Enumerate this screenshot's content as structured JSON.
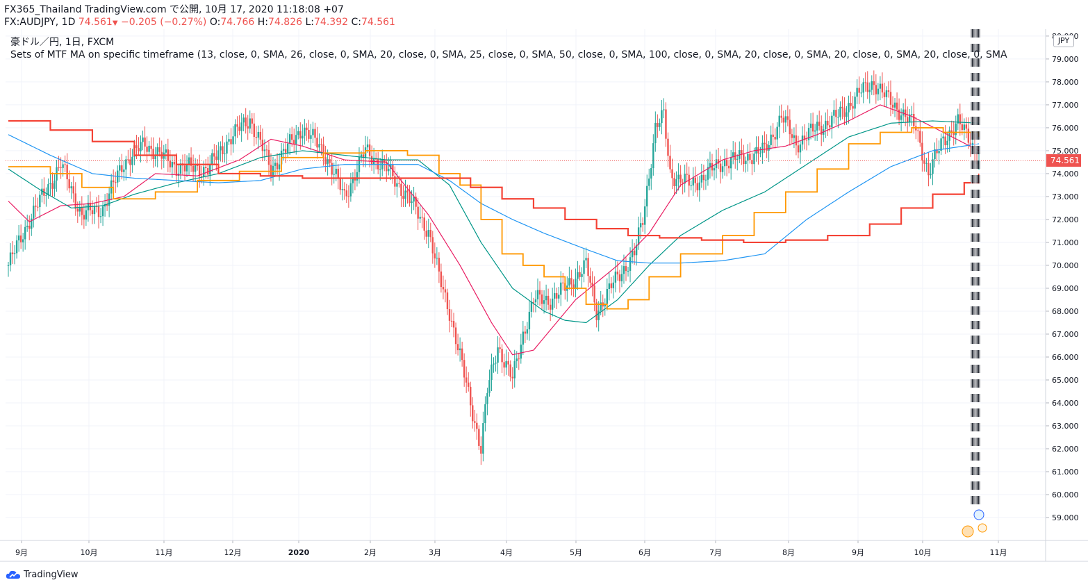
{
  "header": {
    "line1": "FX365_Thailand TradingView.com で公開, 10月 17, 2020 11:18:08 +07",
    "symbol": "FX:AUDJPY, 1D",
    "last": "74.561",
    "arrow": "▼",
    "change": "−0.205 (−0.27%)",
    "o_label": "O:",
    "o": "74.766",
    "h_label": "H:",
    "h": "74.826",
    "l_label": "L:",
    "l": "74.392",
    "c_label": "C:",
    "c": "74.561"
  },
  "legend": {
    "title": "豪ドル／円, 1日, FXCM",
    "indicator": "Sets of MTF MA on specific timeframe (13, close, 0, SMA, 26, close, 0, SMA, 20, close, 0, SMA, 25, close, 0, SMA, 50, close, 0, SMA, 100, close, 0, SMA, 20, close, 0, SMA, 20, close, 0, SMA, 20, close, 0, SMA"
  },
  "axis": {
    "currency": "JPY",
    "last_price": "74.561"
  },
  "brand": {
    "name": "TradingView"
  },
  "colors": {
    "up": "#26a69a",
    "down": "#ef5350",
    "ma13": "#e91e63",
    "ma26": "#009688",
    "ma100": "#2196f3",
    "orange": "#ff9800",
    "red": "#f44336"
  },
  "chart_data": {
    "type": "candlestick",
    "ylim": [
      58.0,
      80.3
    ],
    "y_ticks": [
      "59.000",
      "60.000",
      "61.000",
      "62.000",
      "63.000",
      "64.000",
      "65.000",
      "66.000",
      "67.000",
      "68.000",
      "69.000",
      "70.000",
      "71.000",
      "72.000",
      "73.000",
      "74.000",
      "75.000",
      "76.000",
      "77.000",
      "78.000",
      "79.000",
      "80.000"
    ],
    "x_ticks": [
      "9月",
      "10月",
      "11月",
      "12月",
      "2020",
      "2月",
      "3月",
      "4月",
      "5月",
      "6月",
      "7月",
      "8月",
      "9月",
      "10月",
      "11月"
    ],
    "last_price": 74.561,
    "series": [
      {
        "name": "Price",
        "keypoints": [
          [
            0,
            70.0
          ],
          [
            10,
            72.0
          ],
          [
            25,
            74.4
          ],
          [
            35,
            72.2
          ],
          [
            45,
            72.5
          ],
          [
            55,
            74.5
          ],
          [
            65,
            75.3
          ],
          [
            80,
            74.3
          ],
          [
            95,
            74.2
          ],
          [
            105,
            75.5
          ],
          [
            115,
            76.4
          ],
          [
            125,
            74.2
          ],
          [
            140,
            76.0
          ],
          [
            150,
            75.0
          ],
          [
            160,
            73.0
          ],
          [
            170,
            75.0
          ],
          [
            180,
            74.2
          ],
          [
            190,
            73.0
          ],
          [
            200,
            71.5
          ],
          [
            205,
            69.5
          ],
          [
            210,
            68.0
          ],
          [
            215,
            66.0
          ],
          [
            220,
            64.0
          ],
          [
            225,
            62.0
          ],
          [
            228,
            64.5
          ],
          [
            233,
            66.5
          ],
          [
            240,
            65.0
          ],
          [
            245,
            67.0
          ],
          [
            250,
            68.5
          ],
          [
            258,
            68.5
          ],
          [
            265,
            69.0
          ],
          [
            275,
            70.0
          ],
          [
            280,
            68.0
          ],
          [
            290,
            69.5
          ],
          [
            298,
            70.5
          ],
          [
            302,
            72.0
          ],
          [
            308,
            76.0
          ],
          [
            312,
            76.5
          ],
          [
            315,
            74.0
          ],
          [
            325,
            73.5
          ],
          [
            340,
            74.5
          ],
          [
            350,
            74.7
          ],
          [
            360,
            75.0
          ],
          [
            368,
            76.5
          ],
          [
            375,
            75.3
          ],
          [
            385,
            76.0
          ],
          [
            395,
            76.5
          ],
          [
            405,
            77.5
          ],
          [
            412,
            78.0
          ],
          [
            418,
            77.3
          ],
          [
            425,
            76.7
          ],
          [
            432,
            76.0
          ],
          [
            438,
            74.0
          ],
          [
            445,
            75.5
          ],
          [
            452,
            76.2
          ],
          [
            458,
            75.5
          ],
          [
            462,
            74.56
          ]
        ]
      },
      {
        "name": "MA13",
        "keypoints": [
          [
            0,
            72.8
          ],
          [
            10,
            71.9
          ],
          [
            25,
            72.6
          ],
          [
            40,
            72.7
          ],
          [
            55,
            73.0
          ],
          [
            70,
            74.0
          ],
          [
            90,
            73.9
          ],
          [
            110,
            74.6
          ],
          [
            125,
            75.5
          ],
          [
            140,
            75.2
          ],
          [
            160,
            74.6
          ],
          [
            180,
            74.5
          ],
          [
            200,
            72.2
          ],
          [
            215,
            70.0
          ],
          [
            230,
            67.5
          ],
          [
            240,
            66.1
          ],
          [
            250,
            66.3
          ],
          [
            270,
            68.5
          ],
          [
            290,
            70.0
          ],
          [
            305,
            71.4
          ],
          [
            320,
            73.5
          ],
          [
            340,
            74.6
          ],
          [
            355,
            75.0
          ],
          [
            370,
            75.2
          ],
          [
            385,
            75.7
          ],
          [
            400,
            76.3
          ],
          [
            415,
            77.0
          ],
          [
            430,
            76.5
          ],
          [
            445,
            75.8
          ],
          [
            462,
            75.0
          ]
        ]
      },
      {
        "name": "MA26",
        "keypoints": [
          [
            0,
            74.2
          ],
          [
            15,
            73.3
          ],
          [
            30,
            72.5
          ],
          [
            45,
            72.6
          ],
          [
            60,
            73.1
          ],
          [
            80,
            73.6
          ],
          [
            100,
            74.0
          ],
          [
            120,
            74.7
          ],
          [
            140,
            75.0
          ],
          [
            160,
            74.8
          ],
          [
            180,
            74.6
          ],
          [
            195,
            74.6
          ],
          [
            210,
            73.5
          ],
          [
            225,
            71.0
          ],
          [
            240,
            69.0
          ],
          [
            255,
            68.0
          ],
          [
            265,
            67.6
          ],
          [
            275,
            67.5
          ],
          [
            290,
            68.5
          ],
          [
            305,
            70.0
          ],
          [
            320,
            71.3
          ],
          [
            340,
            72.4
          ],
          [
            360,
            73.2
          ],
          [
            380,
            74.4
          ],
          [
            400,
            75.6
          ],
          [
            420,
            76.2
          ],
          [
            440,
            76.3
          ],
          [
            462,
            76.2
          ]
        ]
      },
      {
        "name": "MA100",
        "keypoints": [
          [
            0,
            75.7
          ],
          [
            20,
            74.8
          ],
          [
            40,
            74.0
          ],
          [
            60,
            73.8
          ],
          [
            80,
            73.7
          ],
          [
            100,
            73.6
          ],
          [
            120,
            73.7
          ],
          [
            140,
            74.2
          ],
          [
            160,
            74.4
          ],
          [
            180,
            74.4
          ],
          [
            195,
            74.4
          ],
          [
            210,
            73.7
          ],
          [
            225,
            72.7
          ],
          [
            240,
            72.0
          ],
          [
            255,
            71.4
          ],
          [
            275,
            70.7
          ],
          [
            290,
            70.2
          ],
          [
            305,
            70.1
          ],
          [
            320,
            70.1
          ],
          [
            340,
            70.2
          ],
          [
            360,
            70.5
          ],
          [
            380,
            72.0
          ],
          [
            400,
            73.2
          ],
          [
            420,
            74.3
          ],
          [
            440,
            75.0
          ],
          [
            462,
            75.3
          ]
        ]
      },
      {
        "name": "HTF-MA-orange",
        "type": "step",
        "keypoints": [
          [
            0,
            74.3
          ],
          [
            20,
            74.0
          ],
          [
            35,
            73.4
          ],
          [
            50,
            72.9
          ],
          [
            70,
            73.2
          ],
          [
            90,
            73.7
          ],
          [
            110,
            74.1
          ],
          [
            130,
            74.7
          ],
          [
            150,
            74.9
          ],
          [
            170,
            75.0
          ],
          [
            190,
            74.8
          ],
          [
            205,
            74.0
          ],
          [
            215,
            73.5
          ],
          [
            225,
            72.0
          ],
          [
            235,
            70.5
          ],
          [
            245,
            70.0
          ],
          [
            255,
            69.5
          ],
          [
            265,
            69.0
          ],
          [
            275,
            68.3
          ],
          [
            285,
            68.1
          ],
          [
            295,
            68.5
          ],
          [
            305,
            69.5
          ],
          [
            320,
            70.5
          ],
          [
            340,
            71.3
          ],
          [
            355,
            72.3
          ],
          [
            370,
            73.2
          ],
          [
            385,
            74.2
          ],
          [
            400,
            75.3
          ],
          [
            415,
            75.8
          ],
          [
            430,
            76.0
          ],
          [
            445,
            75.8
          ],
          [
            462,
            75.6
          ]
        ]
      },
      {
        "name": "HTF-MA-red",
        "type": "step",
        "keypoints": [
          [
            0,
            76.3
          ],
          [
            20,
            75.9
          ],
          [
            40,
            75.4
          ],
          [
            60,
            74.8
          ],
          [
            80,
            74.4
          ],
          [
            100,
            74.0
          ],
          [
            120,
            73.9
          ],
          [
            140,
            73.8
          ],
          [
            160,
            73.8
          ],
          [
            190,
            73.8
          ],
          [
            210,
            73.8
          ],
          [
            220,
            73.4
          ],
          [
            235,
            72.9
          ],
          [
            250,
            72.5
          ],
          [
            265,
            72.0
          ],
          [
            280,
            71.6
          ],
          [
            295,
            71.3
          ],
          [
            310,
            71.2
          ],
          [
            330,
            71.1
          ],
          [
            350,
            71.0
          ],
          [
            370,
            71.1
          ],
          [
            390,
            71.3
          ],
          [
            410,
            71.8
          ],
          [
            425,
            72.5
          ],
          [
            440,
            73.1
          ],
          [
            455,
            73.6
          ],
          [
            462,
            74.0
          ]
        ]
      }
    ]
  }
}
